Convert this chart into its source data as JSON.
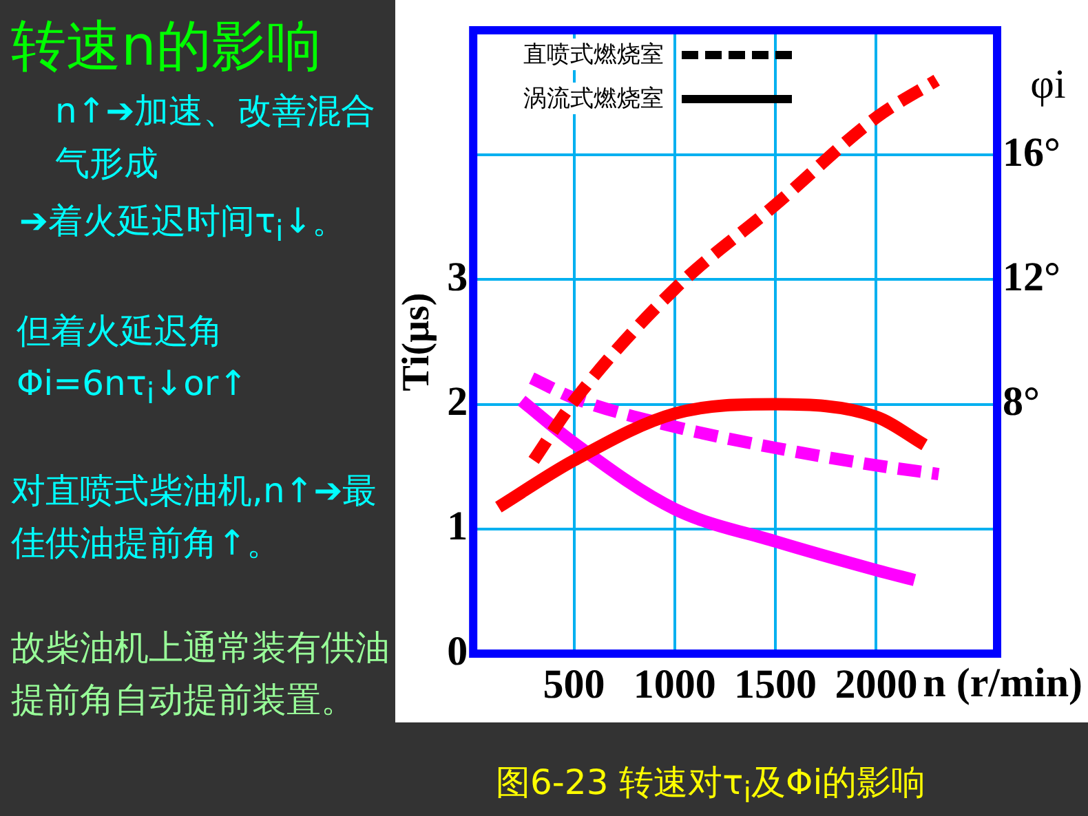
{
  "chart_data": {
    "type": "line",
    "title": "转速n的影响",
    "xlabel": "n (r/min)",
    "ylabel": "Ti(μs)",
    "y2label": "φi",
    "xlim": [
      0,
      2600
    ],
    "xticks": [
      500,
      1000,
      1500,
      2000
    ],
    "ylim": [
      0,
      5
    ],
    "yticks": [
      0,
      1,
      2,
      3
    ],
    "y2lim": [
      0,
      20
    ],
    "y2ticks": [
      {
        "value": 8,
        "label": "8°"
      },
      {
        "value": 12,
        "label": "12°"
      },
      {
        "value": 16,
        "label": "16°"
      }
    ],
    "grid": true,
    "marker": "none",
    "legend": false,
    "series": [
      {
        "axis": "y2",
        "color": "#ff0000",
        "line_style": "dashed",
        "x": [
          300,
          500,
          1000,
          1500,
          2000,
          2300
        ],
        "values": [
          6.2,
          8.1,
          11.7,
          14.4,
          17.2,
          18.4
        ]
      },
      {
        "axis": "y2",
        "color": "#ff0000",
        "line_style": "solid",
        "x": [
          125,
          500,
          1000,
          1500,
          2000,
          2240
        ],
        "values": [
          4.7,
          6.2,
          7.7,
          8.0,
          7.6,
          6.7
        ]
      },
      {
        "axis": "y",
        "color": "#ff00ff",
        "line_style": "dashed",
        "x": [
          290,
          500,
          1000,
          1500,
          2000,
          2310
        ],
        "values": [
          2.21,
          2.05,
          1.82,
          1.65,
          1.51,
          1.44
        ]
      },
      {
        "axis": "y",
        "color": "#ff00ff",
        "line_style": "solid",
        "x": [
          240,
          500,
          1000,
          1500,
          2000,
          2190
        ],
        "values": [
          2.03,
          1.69,
          1.16,
          0.9,
          0.67,
          0.59
        ]
      }
    ],
    "annotations": [
      "n↑➔加速、改善混合气形成",
      "➔着火延迟时间τ$_{i}$↓。",
      "但着火延迟角Φi=6nτ$_{i}$↓or↑",
      "对直喷式柴油机,n↑➔最佳供油提前角↑。",
      "故柴油机上通常装有供油提前角自动提前装置。",
      "图6-23  转速对τ$_{i}$及Φi的影响",
      "直喷式燃烧室",
      "涡流式燃烧室"
    ]
  }
}
